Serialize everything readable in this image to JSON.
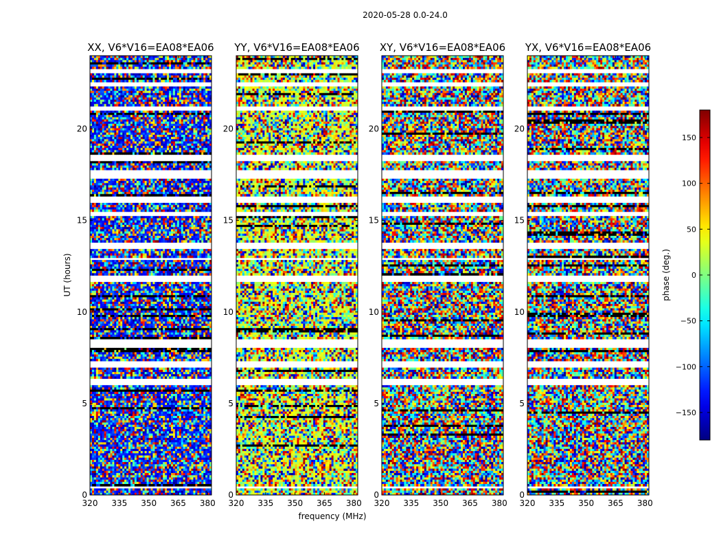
{
  "chart_data": {
    "type": "heatmap",
    "suptitle": "2020-05-28 0.0-24.0",
    "xlabel": "frequency (MHz)",
    "ylabel": "UT (hours)",
    "xlim": [
      320,
      382
    ],
    "ylim": [
      0,
      24
    ],
    "xticks": [
      320,
      335,
      350,
      365,
      380
    ],
    "yticks": [
      0,
      5,
      10,
      15,
      20
    ],
    "panels": [
      {
        "title": "XX, V6*V16=EA08*EA06",
        "correlation": "XX",
        "dominant_phase_deg": -130
      },
      {
        "title": "YY, V6*V16=EA08*EA06",
        "correlation": "YY",
        "dominant_phase_deg": 30
      },
      {
        "title": "XY, V6*V16=EA08*EA06",
        "correlation": "XY",
        "dominant_phase_deg": null
      },
      {
        "title": "YX, V6*V16=EA08*EA06",
        "correlation": "YX",
        "dominant_phase_deg": null
      }
    ],
    "colorbar": {
      "label": "phase (deg.)",
      "colormap": "jet",
      "range": [
        -180,
        180
      ],
      "ticks": [
        150,
        100,
        50,
        0,
        -50,
        -100,
        -150
      ],
      "tick_labels": [
        "150",
        "100",
        "50",
        "0",
        "−50",
        "−100",
        "−150"
      ]
    },
    "flagged_ut_bands_hours": [
      [
        0.3,
        0.5
      ],
      [
        6.0,
        6.3
      ],
      [
        7.0,
        7.3
      ],
      [
        8.0,
        8.5
      ],
      [
        11.7,
        12.0
      ],
      [
        12.8,
        13.0
      ],
      [
        13.4,
        13.8
      ],
      [
        15.2,
        15.5
      ],
      [
        16.0,
        16.3
      ],
      [
        17.3,
        17.7
      ],
      [
        18.3,
        18.6
      ],
      [
        21.0,
        21.2
      ],
      [
        22.3,
        22.5
      ],
      [
        23.0,
        23.3
      ]
    ]
  }
}
